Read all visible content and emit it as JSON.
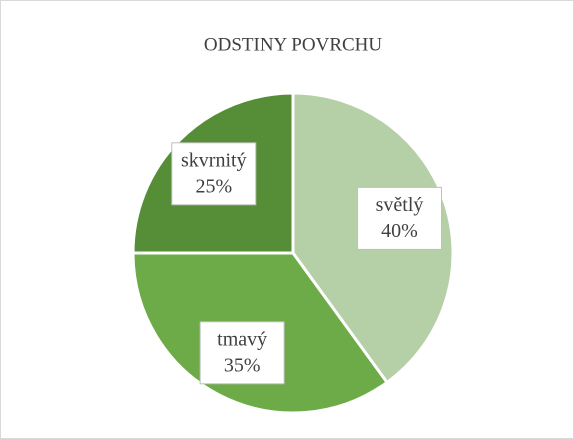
{
  "chart_data": {
    "type": "pie",
    "title": "ODSTINY POVRCHU",
    "categories": [
      "světlý",
      "tmavý",
      "skvrnitý"
    ],
    "values": [
      40,
      35,
      25
    ],
    "value_labels": [
      "40%",
      "35%",
      "25%"
    ],
    "colors": [
      "#b5cfa6",
      "#6cab47",
      "#558e36"
    ]
  }
}
